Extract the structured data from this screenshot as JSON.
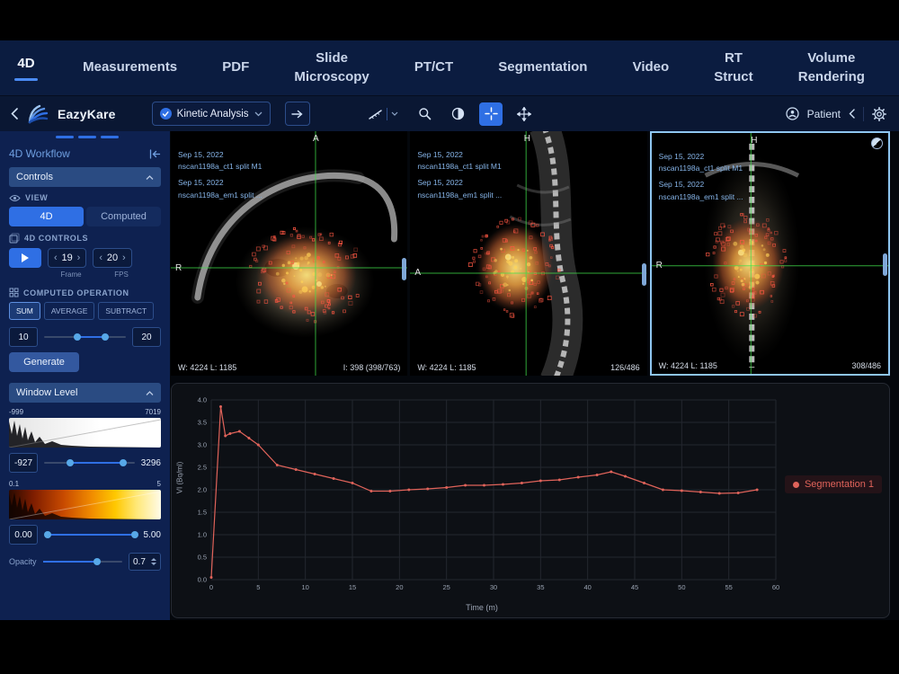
{
  "nav": {
    "tabs": [
      {
        "label": "4D",
        "active": true
      },
      {
        "label": "Measurements"
      },
      {
        "label": "PDF"
      },
      {
        "label": "Slide\nMicroscopy"
      },
      {
        "label": "PT/CT"
      },
      {
        "label": "Segmentation"
      },
      {
        "label": "Video"
      },
      {
        "label": "RT\nStruct"
      },
      {
        "label": "Volume\nRendering"
      }
    ]
  },
  "toolbar": {
    "brand": "EazyKare",
    "mode_select": {
      "value": "Kinetic Analysis"
    },
    "patient_label": "Patient"
  },
  "sidebar": {
    "workflow_title": "4D Workflow",
    "controls_header": "Controls",
    "view_label": "VIEW",
    "view_toggle": {
      "option_4d": "4D",
      "option_computed": "Computed",
      "active": "4D"
    },
    "controls_4d_label": "4D CONTROLS",
    "frame": {
      "value": "19",
      "label": "Frame"
    },
    "fps": {
      "value": "20",
      "label": "FPS"
    },
    "computed_operation_label": "COMPUTED OPERATION",
    "operations": [
      "SUM",
      "AVERAGE",
      "SUBTRACT"
    ],
    "range": {
      "min": "10",
      "max": "20"
    },
    "generate_label": "Generate",
    "window_level_header": "Window Level",
    "ct_window": {
      "hist_min": "-999",
      "hist_max": "7019",
      "low": "-927",
      "high": "3296"
    },
    "pt_window": {
      "hist_min": "0.1",
      "hist_max": "5",
      "low": "0.00",
      "high": "5.00"
    },
    "opacity": {
      "label": "Opacity",
      "value": "0.7"
    }
  },
  "viewports": [
    {
      "date1": "Sep 15, 2022",
      "series1": "nscan1198a_ct1 split M1",
      "date2": "Sep 15, 2022",
      "series2": "nscan1198a_em1 split ...",
      "orient_top": "A",
      "orient_left": "R",
      "window_level": "W: 4224  L: 1185",
      "slice_info": "I: 398 (398/763)"
    },
    {
      "date1": "Sep 15, 2022",
      "series1": "nscan1198a_ct1 split M1",
      "date2": "Sep 15, 2022",
      "series2": "nscan1198a_em1 split ...",
      "orient_top": "H",
      "orient_left": "A",
      "window_level": "W: 4224  L: 1185",
      "slice_info": "126/486"
    },
    {
      "date1": "Sep 15, 2022",
      "series1": "nscan1198a_ct1 split M1",
      "date2": "Sep 15, 2022",
      "series2": "nscan1198a_em1 split ...",
      "orient_top": "H",
      "orient_left": "R",
      "window_level": "W: 4224  L: 1185",
      "slice_info": "308/486"
    }
  ],
  "chart_data": {
    "type": "line",
    "title": "",
    "xlabel": "Time (m)",
    "ylabel": "VI (Bq/ml)",
    "xlim": [
      0,
      60
    ],
    "ylim": [
      0,
      4.0
    ],
    "xticks": [
      0,
      5,
      10,
      15,
      20,
      25,
      30,
      35,
      40,
      45,
      50,
      55,
      60
    ],
    "yticks": [
      0.0,
      0.5,
      1.0,
      1.5,
      2.0,
      2.5,
      3.0,
      3.5,
      4.0
    ],
    "grid": true,
    "legend_position": "right",
    "series": [
      {
        "name": "Segmentation 1",
        "color": "#e0635a",
        "x": [
          0,
          1,
          1.5,
          2,
          3,
          4,
          5,
          7,
          9,
          11,
          13,
          15,
          17,
          19,
          21,
          23,
          25,
          27,
          29,
          31,
          33,
          35,
          37,
          39,
          41,
          42.5,
          44,
          46,
          48,
          50,
          52,
          54,
          56,
          58
        ],
        "y": [
          0.05,
          3.85,
          3.2,
          3.25,
          3.3,
          3.15,
          3.0,
          2.55,
          2.45,
          2.35,
          2.25,
          2.15,
          1.97,
          1.97,
          2.0,
          2.02,
          2.05,
          2.1,
          2.1,
          2.12,
          2.15,
          2.2,
          2.22,
          2.28,
          2.33,
          2.4,
          2.3,
          2.15,
          2.0,
          1.98,
          1.95,
          1.92,
          1.93,
          2.0
        ]
      }
    ]
  }
}
